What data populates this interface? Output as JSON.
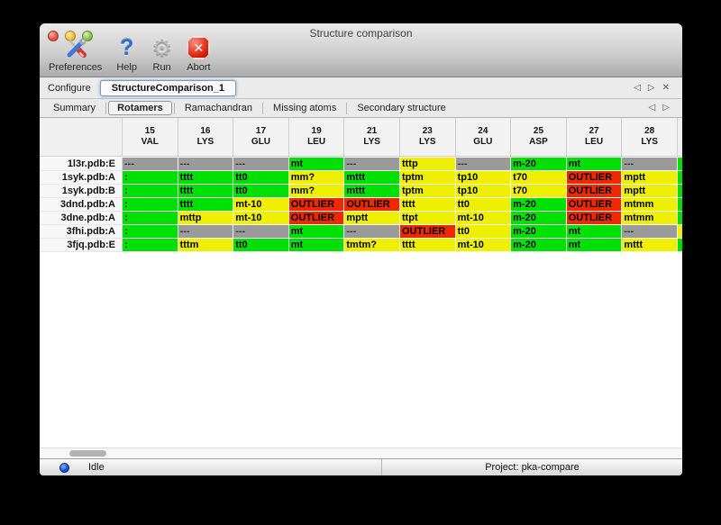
{
  "window": {
    "title": "Structure comparison"
  },
  "window_controls": [
    {
      "id": "close",
      "color": "#e5584c"
    },
    {
      "id": "minimize",
      "color": "#f3bd3f"
    },
    {
      "id": "zoom",
      "color": "#8cc54e"
    }
  ],
  "toolbar": {
    "buttons": [
      {
        "id": "preferences",
        "label": "Preferences",
        "icon": "tools-icon"
      },
      {
        "id": "help",
        "label": "Help",
        "icon": "question-icon"
      },
      {
        "id": "run",
        "label": "Run",
        "icon": "gear-icon"
      },
      {
        "id": "abort",
        "label": "Abort",
        "icon": "stop-icon"
      }
    ]
  },
  "configure": {
    "label": "Configure",
    "active_tab": "StructureComparison_1",
    "nav": [
      "prev",
      "next",
      "close"
    ]
  },
  "view_tabs": {
    "items": [
      "Summary",
      "Rotamers",
      "Ramachandran",
      "Missing atoms",
      "Secondary structure"
    ],
    "active": "Rotamers",
    "nav": [
      "prev",
      "next"
    ]
  },
  "icons": {
    "prev": "◁",
    "next": "▷",
    "close": "✕",
    "question": "?",
    "gear": "⚙",
    "stop_cross": "✕"
  },
  "colors": {
    "ok": "#00e004",
    "warn": "#efef00",
    "outlier": "#ee2800",
    "none": "#9a9a9a"
  },
  "table": {
    "columns": [
      {
        "num": "15",
        "res": "VAL"
      },
      {
        "num": "16",
        "res": "LYS"
      },
      {
        "num": "17",
        "res": "GLU"
      },
      {
        "num": "19",
        "res": "LEU"
      },
      {
        "num": "21",
        "res": "LYS"
      },
      {
        "num": "23",
        "res": "LYS"
      },
      {
        "num": "24",
        "res": "GLU"
      },
      {
        "num": "25",
        "res": "ASP"
      },
      {
        "num": "27",
        "res": "LEU"
      },
      {
        "num": "28",
        "res": "LYS"
      }
    ],
    "rows": [
      {
        "label": "1l3r.pdb:E",
        "edge": "ok",
        "cells": [
          {
            "text": "---",
            "status": "none"
          },
          {
            "text": "---",
            "status": "none"
          },
          {
            "text": "---",
            "status": "none"
          },
          {
            "text": "mt",
            "status": "ok"
          },
          {
            "text": "---",
            "status": "none"
          },
          {
            "text": "tttp",
            "status": "warn"
          },
          {
            "text": "---",
            "status": "none"
          },
          {
            "text": "m-20",
            "status": "ok"
          },
          {
            "text": "mt",
            "status": "ok"
          },
          {
            "text": "---",
            "status": "none"
          }
        ]
      },
      {
        "label": "1syk.pdb:A",
        "edge": "ok",
        "cells": [
          {
            "text": ":",
            "status": "ok"
          },
          {
            "text": "tttt",
            "status": "ok"
          },
          {
            "text": "tt0",
            "status": "ok"
          },
          {
            "text": "mm?",
            "status": "warn"
          },
          {
            "text": "mttt",
            "status": "ok"
          },
          {
            "text": "tptm",
            "status": "warn"
          },
          {
            "text": "tp10",
            "status": "warn"
          },
          {
            "text": "t70",
            "status": "warn"
          },
          {
            "text": "OUTLIER",
            "status": "outlier"
          },
          {
            "text": "mptt",
            "status": "warn"
          }
        ]
      },
      {
        "label": "1syk.pdb:B",
        "edge": "ok",
        "cells": [
          {
            "text": ":",
            "status": "ok"
          },
          {
            "text": "tttt",
            "status": "ok"
          },
          {
            "text": "tt0",
            "status": "ok"
          },
          {
            "text": "mm?",
            "status": "warn"
          },
          {
            "text": "mttt",
            "status": "ok"
          },
          {
            "text": "tptm",
            "status": "warn"
          },
          {
            "text": "tp10",
            "status": "warn"
          },
          {
            "text": "t70",
            "status": "warn"
          },
          {
            "text": "OUTLIER",
            "status": "outlier"
          },
          {
            "text": "mptt",
            "status": "warn"
          }
        ]
      },
      {
        "label": "3dnd.pdb:A",
        "edge": "ok",
        "cells": [
          {
            "text": ":",
            "status": "ok"
          },
          {
            "text": "tttt",
            "status": "ok"
          },
          {
            "text": "mt-10",
            "status": "warn"
          },
          {
            "text": "OUTLIER",
            "status": "outlier"
          },
          {
            "text": "OUTLIER",
            "status": "outlier"
          },
          {
            "text": "tttt",
            "status": "warn"
          },
          {
            "text": "tt0",
            "status": "warn"
          },
          {
            "text": "m-20",
            "status": "ok"
          },
          {
            "text": "OUTLIER",
            "status": "outlier"
          },
          {
            "text": "mtmm",
            "status": "warn"
          }
        ]
      },
      {
        "label": "3dne.pdb:A",
        "edge": "ok",
        "cells": [
          {
            "text": ":",
            "status": "ok"
          },
          {
            "text": "mttp",
            "status": "warn"
          },
          {
            "text": "mt-10",
            "status": "warn"
          },
          {
            "text": "OUTLIER",
            "status": "outlier"
          },
          {
            "text": "mptt",
            "status": "warn"
          },
          {
            "text": "ttpt",
            "status": "warn"
          },
          {
            "text": "mt-10",
            "status": "warn"
          },
          {
            "text": "m-20",
            "status": "ok"
          },
          {
            "text": "OUTLIER",
            "status": "outlier"
          },
          {
            "text": "mtmm",
            "status": "warn"
          }
        ]
      },
      {
        "label": "3fhi.pdb:A",
        "edge": "warn",
        "cells": [
          {
            "text": ":",
            "status": "ok"
          },
          {
            "text": "---",
            "status": "none"
          },
          {
            "text": "---",
            "status": "none"
          },
          {
            "text": "mt",
            "status": "ok"
          },
          {
            "text": "---",
            "status": "none"
          },
          {
            "text": "OUTLIER",
            "status": "outlier"
          },
          {
            "text": "tt0",
            "status": "warn"
          },
          {
            "text": "m-20",
            "status": "ok"
          },
          {
            "text": "mt",
            "status": "ok"
          },
          {
            "text": "---",
            "status": "none"
          }
        ]
      },
      {
        "label": "3fjq.pdb:E",
        "edge": "ok",
        "cells": [
          {
            "text": ":",
            "status": "ok"
          },
          {
            "text": "tttm",
            "status": "warn"
          },
          {
            "text": "tt0",
            "status": "ok"
          },
          {
            "text": "mt",
            "status": "ok"
          },
          {
            "text": "tmtm?",
            "status": "warn"
          },
          {
            "text": "tttt",
            "status": "warn"
          },
          {
            "text": "mt-10",
            "status": "warn"
          },
          {
            "text": "m-20",
            "status": "ok"
          },
          {
            "text": "mt",
            "status": "ok"
          },
          {
            "text": "mttt",
            "status": "warn"
          }
        ]
      }
    ]
  },
  "statusbar": {
    "status": "Idle",
    "project": "Project: pka-compare"
  }
}
